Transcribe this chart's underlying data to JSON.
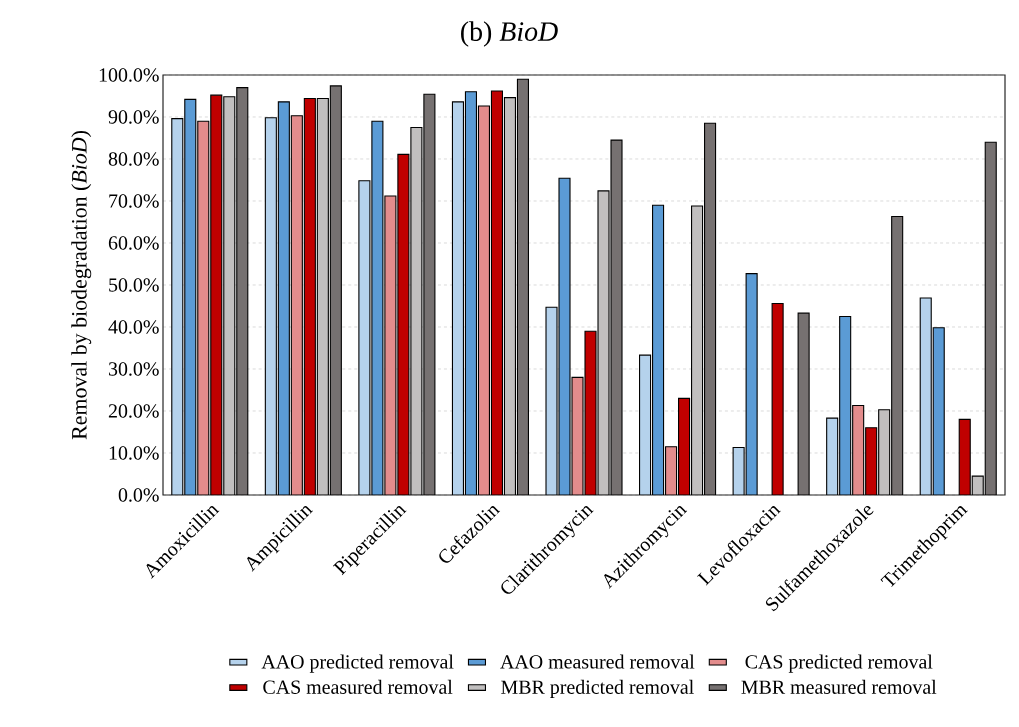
{
  "chart_data": {
    "type": "bar",
    "title": "(b) *BioD*",
    "ylabel": "Removal by biodegradation (*BioD*)",
    "categories": [
      "Amoxicillin",
      "Ampicillin",
      "Piperacillin",
      "Cefazolin",
      "Clarithromycin",
      "Azithromycin",
      "Levofloxacin",
      "Sulfamethoxazole",
      "Trimethoprim"
    ],
    "series": [
      {
        "name": "AAO predicted removal",
        "color": "#b5d2ec",
        "values": [
          89.6,
          89.8,
          74.8,
          93.6,
          44.7,
          33.3,
          11.3,
          18.3,
          46.9
        ]
      },
      {
        "name": "AAO measured removal",
        "color": "#5b9bd5",
        "values": [
          94.2,
          93.6,
          89.0,
          96.0,
          75.4,
          69.0,
          52.7,
          42.5,
          39.8
        ]
      },
      {
        "name": "CAS predicted removal",
        "color": "#e38c8c",
        "values": [
          89.0,
          90.3,
          71.2,
          92.6,
          28.0,
          11.5,
          null,
          21.3,
          null
        ]
      },
      {
        "name": "CAS measured removal",
        "color": "#c00000",
        "values": [
          95.2,
          94.4,
          81.1,
          96.2,
          39.0,
          23.0,
          45.6,
          16.0,
          18.0
        ]
      },
      {
        "name": "MBR predicted removal",
        "color": "#c1bfbf",
        "values": [
          94.8,
          94.4,
          87.5,
          94.6,
          72.4,
          68.8,
          null,
          20.3,
          4.5
        ]
      },
      {
        "name": "MBR measured removal",
        "color": "#767171",
        "values": [
          97.0,
          97.4,
          95.4,
          99.0,
          84.5,
          88.5,
          43.3,
          66.3,
          84.0
        ]
      }
    ],
    "ylim": [
      0,
      100
    ],
    "yticks": [
      {
        "value": 0,
        "label": "0.0%"
      },
      {
        "value": 10,
        "label": "10.0%"
      },
      {
        "value": 20,
        "label": "20.0%"
      },
      {
        "value": 30,
        "label": "30.0%"
      },
      {
        "value": 40,
        "label": "40.0%"
      },
      {
        "value": 50,
        "label": "50.0%"
      },
      {
        "value": 60,
        "label": "60.0%"
      },
      {
        "value": 70,
        "label": "70.0%"
      },
      {
        "value": 80,
        "label": "80.0%"
      },
      {
        "value": 90,
        "label": "90.0%"
      },
      {
        "value": 100,
        "label": "100.0%"
      }
    ],
    "grid": "y",
    "legend": "bottom"
  }
}
